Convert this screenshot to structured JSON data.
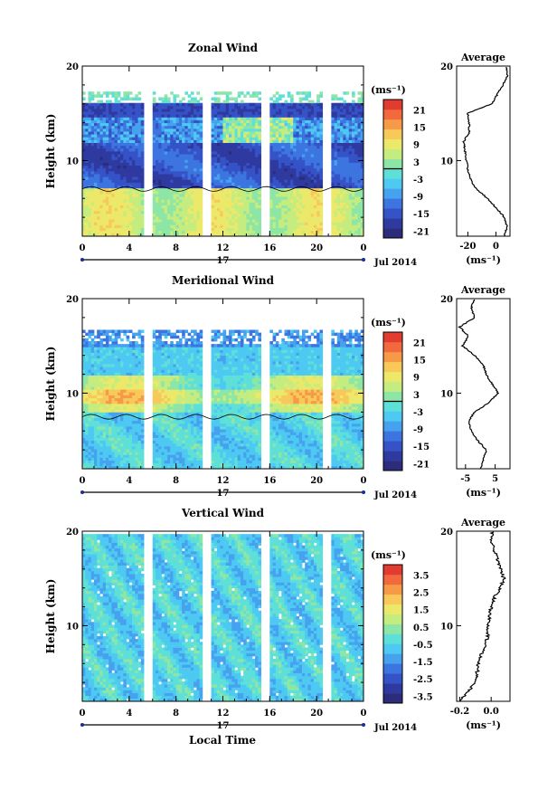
{
  "figure": {
    "xlabel_bottom": "Local Time",
    "date_label": "Jul 2014",
    "day_label": "17"
  },
  "time_ticks": [
    "0",
    "4",
    "8",
    "12",
    "16",
    "20",
    "0"
  ],
  "height_ticks": [
    "10",
    "20"
  ],
  "gap_hours": [
    5.7,
    10.6,
    15.6,
    20.8
  ],
  "colormap": [
    "#2b2d7a",
    "#2f3aa0",
    "#3553c7",
    "#3d75e0",
    "#46a2ef",
    "#4dc9f2",
    "#5ee0d9",
    "#8ee6a6",
    "#c4ec7e",
    "#ece86a",
    "#f8c95a",
    "#f79a48",
    "#f1693c",
    "#e23b30"
  ],
  "chart_data": [
    {
      "type": "heatmap",
      "title": "Zonal Wind",
      "xlabel": "",
      "ylabel": "Height (km)",
      "xlim": [
        0,
        24
      ],
      "ylim": [
        2,
        20
      ],
      "unit": "(ms⁻¹)",
      "colorbar_range": [
        -24,
        24
      ],
      "colorbar_ticks": [
        "21",
        "15",
        "9",
        "3",
        "-3",
        "-9",
        "-15",
        "-21"
      ],
      "profile": {
        "title": "Average",
        "xlabel": "(ms⁻¹)",
        "xlim": [
          -28,
          10
        ],
        "xticks": [
          "-20",
          "0"
        ],
        "heights": [
          2,
          3,
          4,
          5,
          6,
          7,
          8,
          9,
          10,
          11,
          12,
          13,
          14,
          15,
          16,
          17,
          18,
          19,
          20
        ],
        "values": [
          6,
          8,
          6,
          0,
          -6,
          -14,
          -18,
          -20,
          -21,
          -22,
          -23,
          -19,
          -19,
          -20,
          -3,
          1,
          5,
          8,
          7
        ]
      }
    },
    {
      "type": "heatmap",
      "title": "Meridional Wind",
      "xlabel": "",
      "ylabel": "Height (km)",
      "xlim": [
        0,
        24
      ],
      "ylim": [
        2,
        20
      ],
      "unit": "(ms⁻¹)",
      "colorbar_range": [
        -24,
        24
      ],
      "colorbar_ticks": [
        "21",
        "15",
        "9",
        "3",
        "-3",
        "-9",
        "-15",
        "-21"
      ],
      "profile": {
        "title": "Average",
        "xlabel": "(ms⁻¹)",
        "xlim": [
          -8,
          10
        ],
        "xticks": [
          "-5",
          "5"
        ],
        "heights": [
          2,
          3,
          4,
          5,
          6,
          7,
          8,
          9,
          10,
          11,
          12,
          13,
          14,
          15,
          16,
          17,
          18,
          19,
          20
        ],
        "values": [
          0,
          1,
          2,
          -1,
          -3,
          -4,
          -2,
          3,
          6,
          4,
          2,
          1,
          -2,
          -6,
          -4,
          -7,
          -2,
          -3,
          -2
        ]
      }
    },
    {
      "type": "heatmap",
      "title": "Vertical Wind",
      "xlabel": "Local Time",
      "ylabel": "Height (km)",
      "xlim": [
        0,
        24
      ],
      "ylim": [
        2,
        20
      ],
      "unit": "(ms⁻¹)",
      "colorbar_range": [
        -4,
        4
      ],
      "colorbar_ticks": [
        "3.5",
        "2.5",
        "1.5",
        "0.5",
        "-0.5",
        "-1.5",
        "-2.5",
        "-3.5"
      ],
      "profile": {
        "title": "Average",
        "xlabel": "(ms⁻¹)",
        "xlim": [
          -0.22,
          0.12
        ],
        "xticks": [
          "-0.2",
          "0.0"
        ],
        "heights": [
          2,
          3,
          4,
          5,
          6,
          7,
          8,
          9,
          10,
          11,
          12,
          13,
          14,
          15,
          16,
          17,
          18,
          19,
          20
        ],
        "values": [
          -0.2,
          -0.15,
          -0.1,
          -0.09,
          -0.08,
          -0.06,
          -0.04,
          -0.02,
          -0.02,
          -0.01,
          0.0,
          0.02,
          0.06,
          0.08,
          0.06,
          0.04,
          0.02,
          0.0,
          0.01
        ]
      }
    }
  ]
}
